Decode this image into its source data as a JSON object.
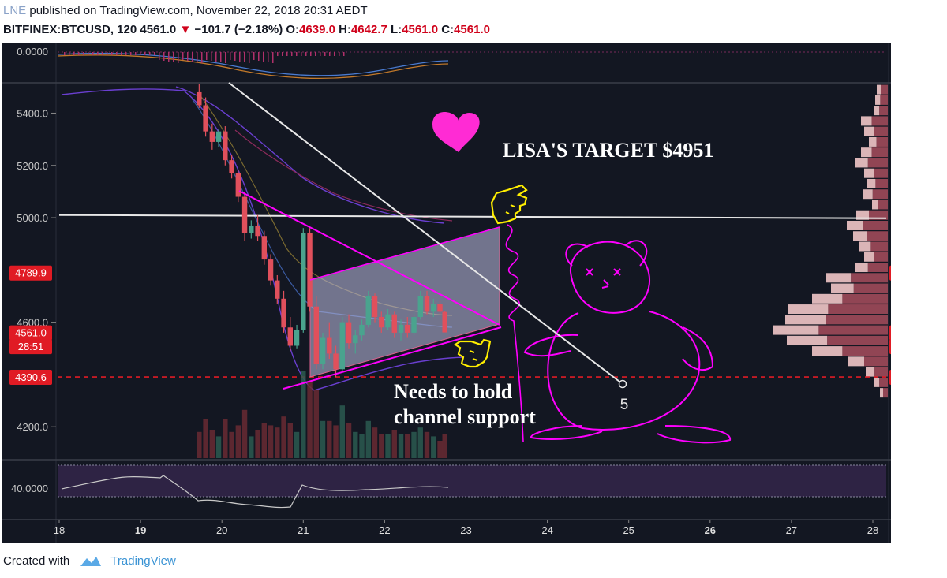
{
  "header": {
    "line1_user": "LNE",
    "line1_rest": " published on TradingView.com, November 22, 2018 20:31 AEDT",
    "symbol": "BITFINEX:BTCUSD, 120",
    "last": "4561.0",
    "change": "−101.7 (−2.18%)",
    "o_label": "O:",
    "o_val": "4639.0",
    "h_label": "H:",
    "h_val": "4642.7",
    "l_label": "L:",
    "l_val": "4561.0",
    "c_label": "C:",
    "c_val": "4561.0"
  },
  "footer": {
    "created": "Created with",
    "brand": "TradingView"
  },
  "colors": {
    "bg": "#131722",
    "up": "#4aa38e",
    "down": "#e0505c",
    "magenta": "#ff00ff",
    "yellow": "#ffee00",
    "white": "#e8e8e8"
  },
  "chart_data": {
    "type": "candlestick",
    "x_tick_labels": [
      "18",
      "19",
      "20",
      "21",
      "22",
      "23",
      "24",
      "25",
      "26",
      "27",
      "28"
    ],
    "y_range": [
      4080,
      5510
    ],
    "y_tick_labels": [
      "5400.0",
      "5200.0",
      "5000.0",
      "4600.0",
      "4200.0"
    ],
    "y_ticks": [
      5400,
      5200,
      5000,
      4600,
      4200
    ],
    "top_osc_label": "0.0000",
    "rsi_label": "40.0000",
    "price_tags": [
      {
        "text": "4789.9",
        "value": 4789.9
      },
      {
        "text": "4561.0",
        "value": 4561.0
      },
      {
        "text": "28:51",
        "value": 4508
      },
      {
        "text": "4390.6",
        "value": 4390.6
      }
    ],
    "candles": [
      {
        "x": 19.72,
        "o": 5480,
        "h": 5510,
        "l": 5420,
        "c": 5430
      },
      {
        "x": 19.8,
        "o": 5430,
        "h": 5460,
        "l": 5310,
        "c": 5330
      },
      {
        "x": 19.88,
        "o": 5330,
        "h": 5360,
        "l": 5260,
        "c": 5290
      },
      {
        "x": 19.96,
        "o": 5290,
        "h": 5340,
        "l": 5270,
        "c": 5330
      },
      {
        "x": 20.04,
        "o": 5330,
        "h": 5350,
        "l": 5200,
        "c": 5220
      },
      {
        "x": 20.12,
        "o": 5220,
        "h": 5240,
        "l": 5150,
        "c": 5170
      },
      {
        "x": 20.2,
        "o": 5170,
        "h": 5180,
        "l": 5060,
        "c": 5080
      },
      {
        "x": 20.28,
        "o": 5080,
        "h": 5100,
        "l": 4910,
        "c": 4940
      },
      {
        "x": 20.36,
        "o": 4940,
        "h": 4990,
        "l": 4920,
        "c": 4970
      },
      {
        "x": 20.44,
        "o": 4970,
        "h": 5010,
        "l": 4910,
        "c": 4930
      },
      {
        "x": 20.52,
        "o": 4930,
        "h": 4950,
        "l": 4820,
        "c": 4840
      },
      {
        "x": 20.6,
        "o": 4840,
        "h": 4860,
        "l": 4740,
        "c": 4760
      },
      {
        "x": 20.68,
        "o": 4760,
        "h": 4780,
        "l": 4670,
        "c": 4690
      },
      {
        "x": 20.76,
        "o": 4690,
        "h": 4720,
        "l": 4560,
        "c": 4580
      },
      {
        "x": 20.84,
        "o": 4580,
        "h": 4620,
        "l": 4490,
        "c": 4510
      },
      {
        "x": 20.92,
        "o": 4510,
        "h": 4590,
        "l": 4500,
        "c": 4570
      },
      {
        "x": 21.0,
        "o": 4570,
        "h": 4960,
        "l": 4560,
        "c": 4940
      },
      {
        "x": 21.08,
        "o": 4940,
        "h": 4960,
        "l": 4640,
        "c": 4660
      },
      {
        "x": 21.16,
        "o": 4660,
        "h": 4700,
        "l": 4420,
        "c": 4440
      },
      {
        "x": 21.24,
        "o": 4440,
        "h": 4560,
        "l": 4420,
        "c": 4540
      },
      {
        "x": 21.32,
        "o": 4540,
        "h": 4600,
        "l": 4460,
        "c": 4480
      },
      {
        "x": 21.4,
        "o": 4480,
        "h": 4510,
        "l": 4390,
        "c": 4420
      },
      {
        "x": 21.48,
        "o": 4420,
        "h": 4620,
        "l": 4410,
        "c": 4600
      },
      {
        "x": 21.56,
        "o": 4600,
        "h": 4630,
        "l": 4500,
        "c": 4520
      },
      {
        "x": 21.64,
        "o": 4520,
        "h": 4570,
        "l": 4480,
        "c": 4550
      },
      {
        "x": 21.72,
        "o": 4550,
        "h": 4610,
        "l": 4530,
        "c": 4590
      },
      {
        "x": 21.8,
        "o": 4590,
        "h": 4720,
        "l": 4580,
        "c": 4700
      },
      {
        "x": 21.88,
        "o": 4700,
        "h": 4710,
        "l": 4600,
        "c": 4620
      },
      {
        "x": 21.96,
        "o": 4620,
        "h": 4640,
        "l": 4560,
        "c": 4580
      },
      {
        "x": 22.04,
        "o": 4580,
        "h": 4650,
        "l": 4570,
        "c": 4630
      },
      {
        "x": 22.12,
        "o": 4630,
        "h": 4640,
        "l": 4540,
        "c": 4560
      },
      {
        "x": 22.2,
        "o": 4560,
        "h": 4610,
        "l": 4530,
        "c": 4590
      },
      {
        "x": 22.28,
        "o": 4590,
        "h": 4620,
        "l": 4540,
        "c": 4560
      },
      {
        "x": 22.36,
        "o": 4560,
        "h": 4640,
        "l": 4550,
        "c": 4620
      },
      {
        "x": 22.44,
        "o": 4620,
        "h": 4720,
        "l": 4610,
        "c": 4700
      },
      {
        "x": 22.52,
        "o": 4700,
        "h": 4720,
        "l": 4630,
        "c": 4640
      },
      {
        "x": 22.6,
        "o": 4640,
        "h": 4690,
        "l": 4620,
        "c": 4670
      },
      {
        "x": 22.68,
        "o": 4670,
        "h": 4680,
        "l": 4630,
        "c": 4640
      },
      {
        "x": 22.74,
        "o": 4639,
        "h": 4642.7,
        "l": 4561,
        "c": 4561
      }
    ],
    "horizontal_line": 5010,
    "dashed_support": 4390.6,
    "annotations": {
      "target_text": "LISA'S TARGET $4951",
      "support_text_1": "Needs to hold",
      "support_text_2": "channel support",
      "wave_label": "5"
    }
  }
}
